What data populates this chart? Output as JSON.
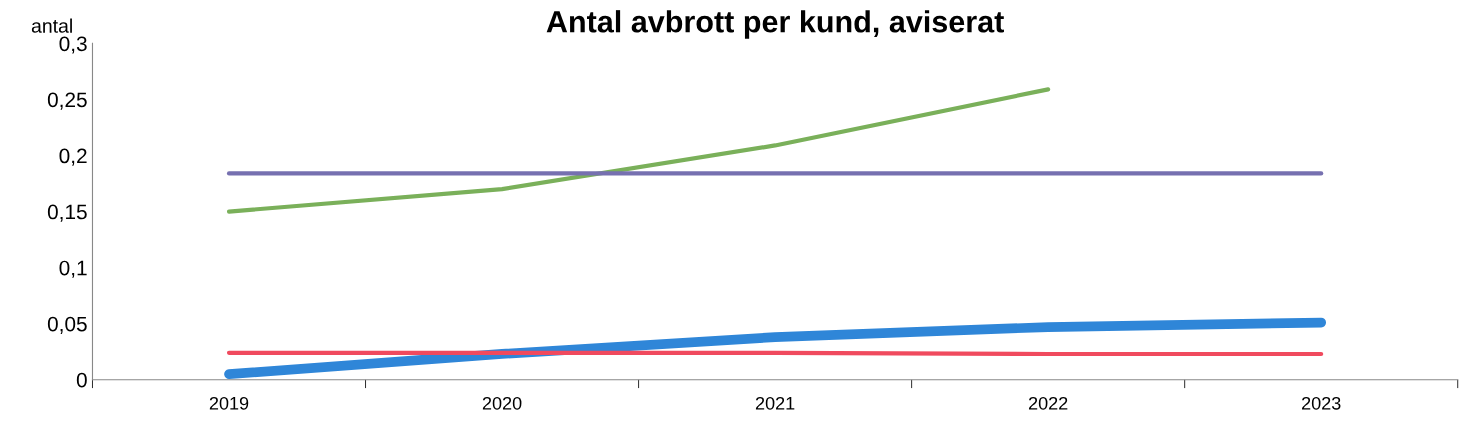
{
  "chart_data": {
    "type": "line",
    "title": "Antal avbrott per kund, aviserat",
    "ylabel": "antal",
    "categories": [
      "2019",
      "2020",
      "2021",
      "2022",
      "2023"
    ],
    "series": [
      {
        "color": "#7ab05a",
        "values": [
          0.15,
          0.17,
          0.209,
          0.259,
          null
        ]
      },
      {
        "color": "#7670b0",
        "values": [
          0.184,
          0.184,
          0.184,
          0.184,
          0.184
        ]
      },
      {
        "color": "#f04a5e",
        "values": [
          0.024,
          0.024,
          0.024,
          0.023,
          0.023
        ]
      },
      {
        "color": "#2f86d8",
        "values": [
          0.005,
          0.023,
          0.038,
          0.047,
          0.051
        ]
      }
    ],
    "ylim": [
      0,
      0.3
    ],
    "yticks": [
      {
        "value": 0,
        "label": "0"
      },
      {
        "value": 0.05,
        "label": "0,05"
      },
      {
        "value": 0.1,
        "label": "0,1"
      },
      {
        "value": 0.15,
        "label": "0,15"
      },
      {
        "value": 0.2,
        "label": "0,2"
      },
      {
        "value": 0.25,
        "label": "0,25"
      },
      {
        "value": 0.3,
        "label": "0,3"
      }
    ],
    "grid": false,
    "legend": false,
    "marker": "none",
    "line_style": "solid"
  }
}
